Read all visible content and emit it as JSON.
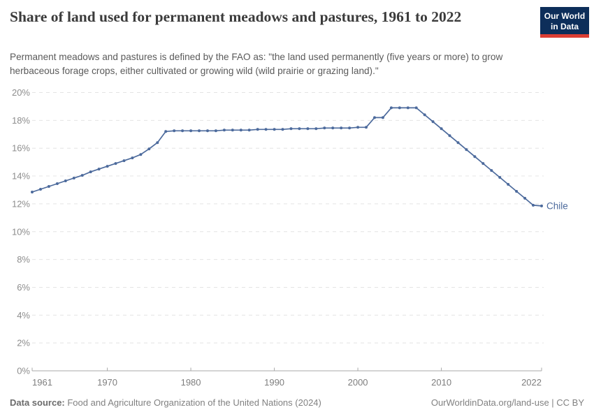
{
  "header": {
    "title": "Share of land used for permanent meadows and pastures, 1961 to 2022",
    "subtitle": "Permanent meadows and pastures is defined by the FAO as: \"the land used permanently (five years or more) to grow herbaceous forage crops, either cultivated or growing wild (wild prairie or grazing land).\"",
    "logo": {
      "line1": "Our World",
      "line2": "in Data",
      "bg_color": "#0d2e5a",
      "accent_color": "#dc3e34"
    }
  },
  "footer": {
    "source_label": "Data source:",
    "source_text": " Food and Agriculture Organization of the United Nations (2024)",
    "right_text": "OurWorldinData.org/land-use | CC BY"
  },
  "chart_data": {
    "type": "line",
    "title": "Share of land used for permanent meadows and pastures, 1961 to 2022",
    "series_name": "Chile",
    "line_color": "#4C6A9C",
    "grid": "horizontal dashed",
    "legend_position": "end-of-line label",
    "xlabel": "",
    "ylabel": "",
    "ylim": [
      0,
      20
    ],
    "yticks": [
      0,
      2,
      4,
      6,
      8,
      10,
      12,
      14,
      16,
      18,
      20
    ],
    "ytick_suffix": "%",
    "xticks": [
      1961,
      1970,
      1980,
      1990,
      2000,
      2010,
      2022
    ],
    "x": [
      1961,
      1962,
      1963,
      1964,
      1965,
      1966,
      1967,
      1968,
      1969,
      1970,
      1971,
      1972,
      1973,
      1974,
      1975,
      1976,
      1977,
      1978,
      1979,
      1980,
      1981,
      1982,
      1983,
      1984,
      1985,
      1986,
      1987,
      1988,
      1989,
      1990,
      1991,
      1992,
      1993,
      1994,
      1995,
      1996,
      1997,
      1998,
      1999,
      2000,
      2001,
      2002,
      2003,
      2004,
      2005,
      2006,
      2007,
      2008,
      2009,
      2010,
      2011,
      2012,
      2013,
      2014,
      2015,
      2016,
      2017,
      2018,
      2019,
      2020,
      2021,
      2022
    ],
    "y": [
      12.85,
      13.05,
      13.25,
      13.45,
      13.65,
      13.85,
      14.05,
      14.3,
      14.5,
      14.7,
      14.9,
      15.1,
      15.3,
      15.55,
      15.95,
      16.4,
      17.2,
      17.25,
      17.25,
      17.25,
      17.25,
      17.25,
      17.25,
      17.3,
      17.3,
      17.3,
      17.3,
      17.35,
      17.35,
      17.35,
      17.35,
      17.4,
      17.4,
      17.4,
      17.4,
      17.45,
      17.45,
      17.45,
      17.45,
      17.5,
      17.5,
      18.2,
      18.2,
      18.9,
      18.9,
      18.9,
      18.9,
      18.4,
      17.9,
      17.4,
      16.9,
      16.4,
      15.9,
      15.4,
      14.9,
      14.4,
      13.9,
      13.4,
      12.9,
      12.4,
      11.9,
      11.85
    ]
  }
}
